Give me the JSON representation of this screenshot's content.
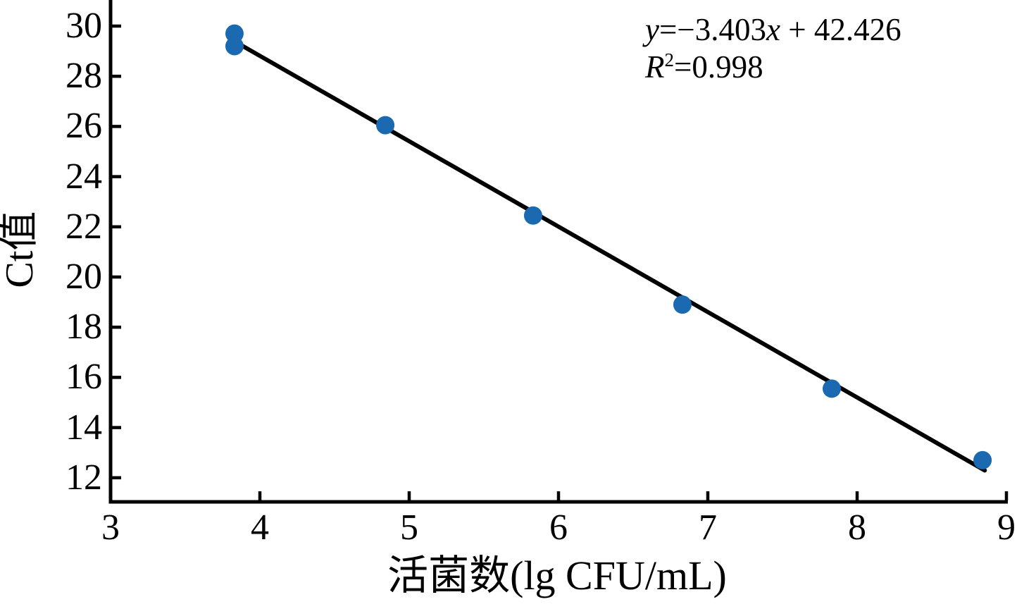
{
  "chart_data": {
    "type": "scatter",
    "title": "",
    "xlabel": "活菌数(lg CFU/mL)",
    "ylabel": "Ct值",
    "x_ticks": [
      3,
      4,
      5,
      6,
      7,
      8,
      9
    ],
    "y_ticks": [
      30,
      28,
      26,
      24,
      22,
      20,
      18,
      16,
      14,
      12
    ],
    "xlim": [
      3,
      9
    ],
    "ylim": [
      11,
      31
    ],
    "grid": false,
    "legend_position": "none",
    "marker_color": "#1b69b1",
    "line_color": "#000000",
    "axis_color": "#000000",
    "points": [
      {
        "x": 3.83,
        "y": 29.7
      },
      {
        "x": 3.83,
        "y": 29.2
      },
      {
        "x": 4.84,
        "y": 26.05
      },
      {
        "x": 5.83,
        "y": 22.45
      },
      {
        "x": 6.83,
        "y": 18.9
      },
      {
        "x": 7.83,
        "y": 15.55
      },
      {
        "x": 8.84,
        "y": 12.7
      }
    ],
    "trendline": {
      "slope": -3.403,
      "intercept": 42.426,
      "x_start": 3.835,
      "x_end": 8.855
    },
    "annotation": {
      "equation": {
        "var1": "y",
        "seg1": "=−3.403",
        "var2": "x",
        "seg2": " + 42.426"
      },
      "r_squared": {
        "symbol": "R",
        "exponent": "2",
        "value": "=0.998"
      }
    }
  }
}
